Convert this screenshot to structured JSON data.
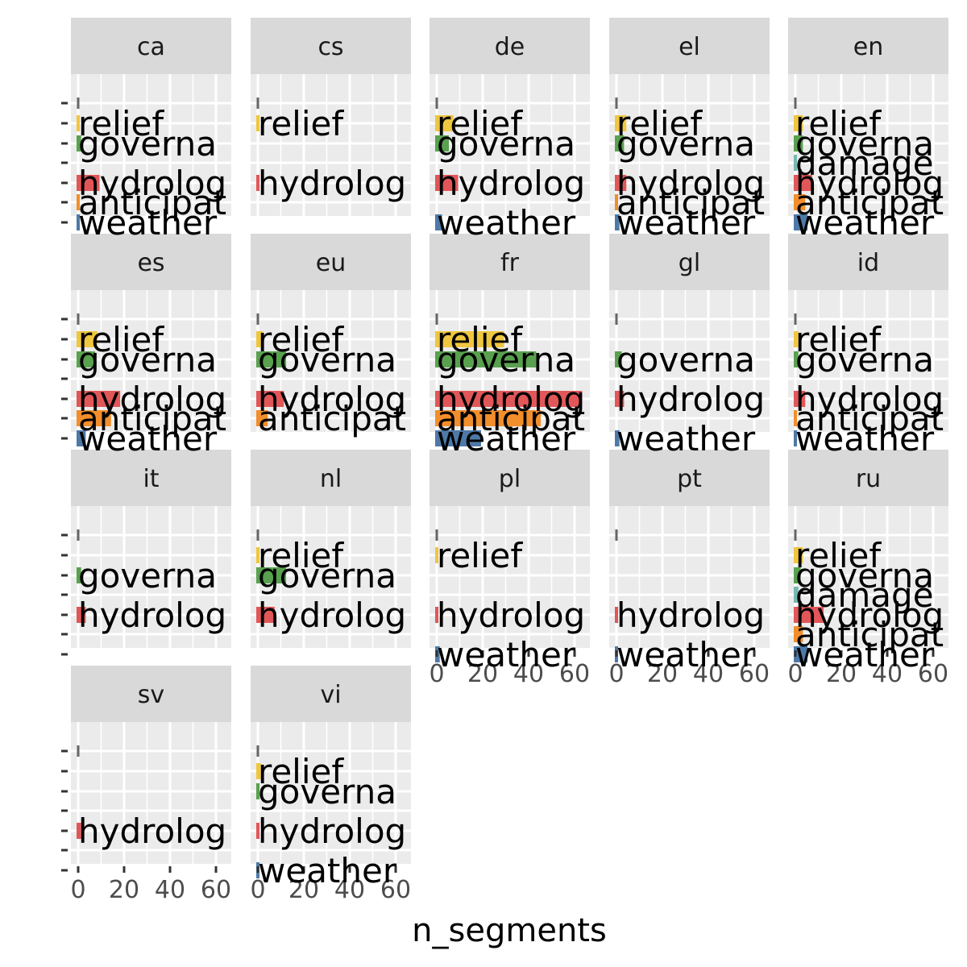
{
  "chart_data": {
    "type": "bar",
    "orientation": "horizontal",
    "layout": "facet_wrap",
    "xlabel": "n_segments",
    "ylabel": "",
    "xlim": [
      0,
      66
    ],
    "x_ticks": [
      0,
      20,
      40,
      60
    ],
    "grid": true,
    "legend": "none",
    "categories": [
      "relief",
      "governance",
      "damage",
      "hydrological",
      "anticipation",
      "weather"
    ],
    "category_display": {
      "relief": "relief",
      "governance": "governa",
      "damage": "damage",
      "hydrological": "hydrolog",
      "anticipation": "anticipat",
      "weather": "weather"
    },
    "colors": {
      "relief": "#EFC63F",
      "governance": "#59A14F",
      "damage": "#76B7B2",
      "hydrological": "#E15759",
      "anticipation": "#F28E2B",
      "weather": "#4E79A7",
      "panel_bg": "#EBEBEB",
      "strip_bg": "#D9D9D9",
      "grid": "#FFFFFF"
    },
    "facets": [
      {
        "name": "ca",
        "values": {
          "relief": 1,
          "governance": 2,
          "hydrological": 10,
          "anticipation": 1,
          "weather": 1
        }
      },
      {
        "name": "cs",
        "values": {
          "relief": 1,
          "hydrological": 1
        }
      },
      {
        "name": "de",
        "values": {
          "relief": 8,
          "governance": 6,
          "hydrological": 10,
          "weather": 3
        }
      },
      {
        "name": "el",
        "values": {
          "relief": 5,
          "governance": 4,
          "hydrological": 5,
          "anticipation": 1,
          "weather": 2
        }
      },
      {
        "name": "en",
        "values": {
          "relief": 4,
          "governance": 4,
          "damage": 1,
          "hydrological": 8,
          "anticipation": 5,
          "weather": 6
        }
      },
      {
        "name": "es",
        "values": {
          "relief": 9,
          "governance": 8,
          "hydrological": 19,
          "anticipation": 15,
          "weather": 4
        }
      },
      {
        "name": "eu",
        "values": {
          "relief": 3,
          "governance": 13,
          "hydrological": 12,
          "anticipation": 5
        }
      },
      {
        "name": "fr",
        "values": {
          "relief": 30,
          "governance": 44,
          "hydrological": 64,
          "anticipation": 46,
          "weather": 20
        }
      },
      {
        "name": "gl",
        "values": {
          "governance": 3,
          "hydrological": 4,
          "weather": 2
        }
      },
      {
        "name": "id",
        "values": {
          "relief": 2,
          "governance": 2,
          "hydrological": 5,
          "anticipation": 1,
          "weather": 1
        }
      },
      {
        "name": "it",
        "values": {
          "governance": 2,
          "hydrological": 4
        }
      },
      {
        "name": "nl",
        "values": {
          "relief": 1,
          "governance": 13,
          "hydrological": 8
        }
      },
      {
        "name": "pl",
        "values": {
          "relief": 1,
          "hydrological": 1,
          "weather": 2
        }
      },
      {
        "name": "pt",
        "values": {
          "hydrological": 1,
          "weather": 1
        }
      },
      {
        "name": "ru",
        "values": {
          "relief": 4,
          "governance": 3,
          "damage": 2,
          "hydrological": 13,
          "anticipation": 4,
          "weather": 6
        }
      },
      {
        "name": "sv",
        "values": {
          "hydrological": 2
        }
      },
      {
        "name": "vi",
        "values": {
          "relief": 2,
          "governance": 1,
          "hydrological": 1,
          "weather": 1
        }
      }
    ]
  }
}
